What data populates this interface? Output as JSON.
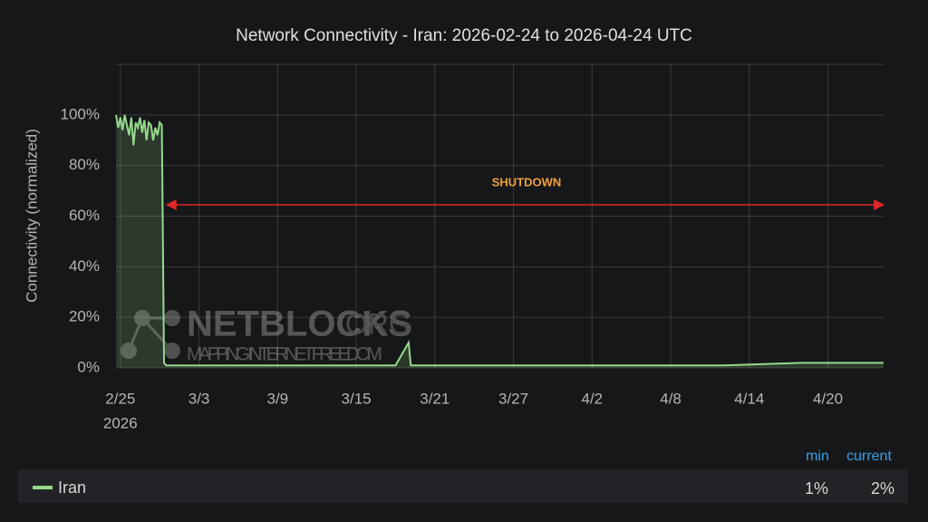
{
  "chart_data": {
    "type": "line",
    "title": "Network Connectivity - Iran: 2026-02-24 to 2026-04-24 UTC",
    "y_axis_label": "Connectivity (normalized)",
    "x_axis_year": "2026",
    "annotation": "SHUTDOWN",
    "watermark": {
      "title": "NETBLOCKS",
      "suffix": ".ORG",
      "tagline": "MAPPING INTERNET FREEDOM"
    },
    "x": [
      "2026-02-24T16:00",
      "2026-02-24T20:00",
      "2026-02-25T00:00",
      "2026-02-25T04:00",
      "2026-02-25T08:00",
      "2026-02-25T12:00",
      "2026-02-25T16:00",
      "2026-02-25T20:00",
      "2026-02-26T00:00",
      "2026-02-26T04:00",
      "2026-02-26T08:00",
      "2026-02-26T12:00",
      "2026-02-26T16:00",
      "2026-02-26T20:00",
      "2026-02-27T00:00",
      "2026-02-27T04:00",
      "2026-02-27T08:00",
      "2026-02-27T12:00",
      "2026-02-27T16:00",
      "2026-02-27T20:00",
      "2026-02-28T00:00",
      "2026-02-28T04:00",
      "2026-02-28T08:00",
      "2026-02-28T12:00",
      "2026-03-05T00:00",
      "2026-03-12T00:00",
      "2026-03-18T00:00",
      "2026-03-19T00:00",
      "2026-03-19T04:00",
      "2026-03-25T00:00",
      "2026-04-05T00:00",
      "2026-04-12T00:00",
      "2026-04-18T00:00",
      "2026-04-24T06:00"
    ],
    "series": [
      {
        "name": "Iran",
        "color": "#96d98d",
        "values": [
          100,
          95,
          99,
          94,
          100,
          96,
          92,
          99,
          88,
          97,
          95,
          99,
          93,
          98,
          90,
          97,
          96,
          90,
          95,
          92,
          97,
          96,
          2,
          1,
          1,
          1,
          1,
          10,
          1,
          1,
          1,
          1,
          2,
          2
        ]
      }
    ],
    "xlim": [
      "2026-02-24T16:00",
      "2026-04-24T06:00"
    ],
    "xticks": [
      {
        "value": "2026-02-25T00:00",
        "label": "2/25"
      },
      {
        "value": "2026-03-03T00:00",
        "label": "3/3"
      },
      {
        "value": "2026-03-09T00:00",
        "label": "3/9"
      },
      {
        "value": "2026-03-15T00:00",
        "label": "3/15"
      },
      {
        "value": "2026-03-21T00:00",
        "label": "3/21"
      },
      {
        "value": "2026-03-27T00:00",
        "label": "3/27"
      },
      {
        "value": "2026-04-02T00:00",
        "label": "4/2"
      },
      {
        "value": "2026-04-08T00:00",
        "label": "4/8"
      },
      {
        "value": "2026-04-14T00:00",
        "label": "4/14"
      },
      {
        "value": "2026-04-20T00:00",
        "label": "4/20"
      }
    ],
    "ylim": [
      0,
      120
    ],
    "yticks": [
      {
        "value": 0,
        "label": "0%"
      },
      {
        "value": 20,
        "label": "20%"
      },
      {
        "value": 40,
        "label": "40%"
      },
      {
        "value": 60,
        "label": "60%"
      },
      {
        "value": 80,
        "label": "80%"
      },
      {
        "value": 100,
        "label": "100%"
      }
    ],
    "grid": true,
    "legend_stats": {
      "headers": [
        "min",
        "current"
      ],
      "values": [
        1,
        2
      ],
      "value_labels": [
        "1%",
        "2%"
      ]
    }
  }
}
